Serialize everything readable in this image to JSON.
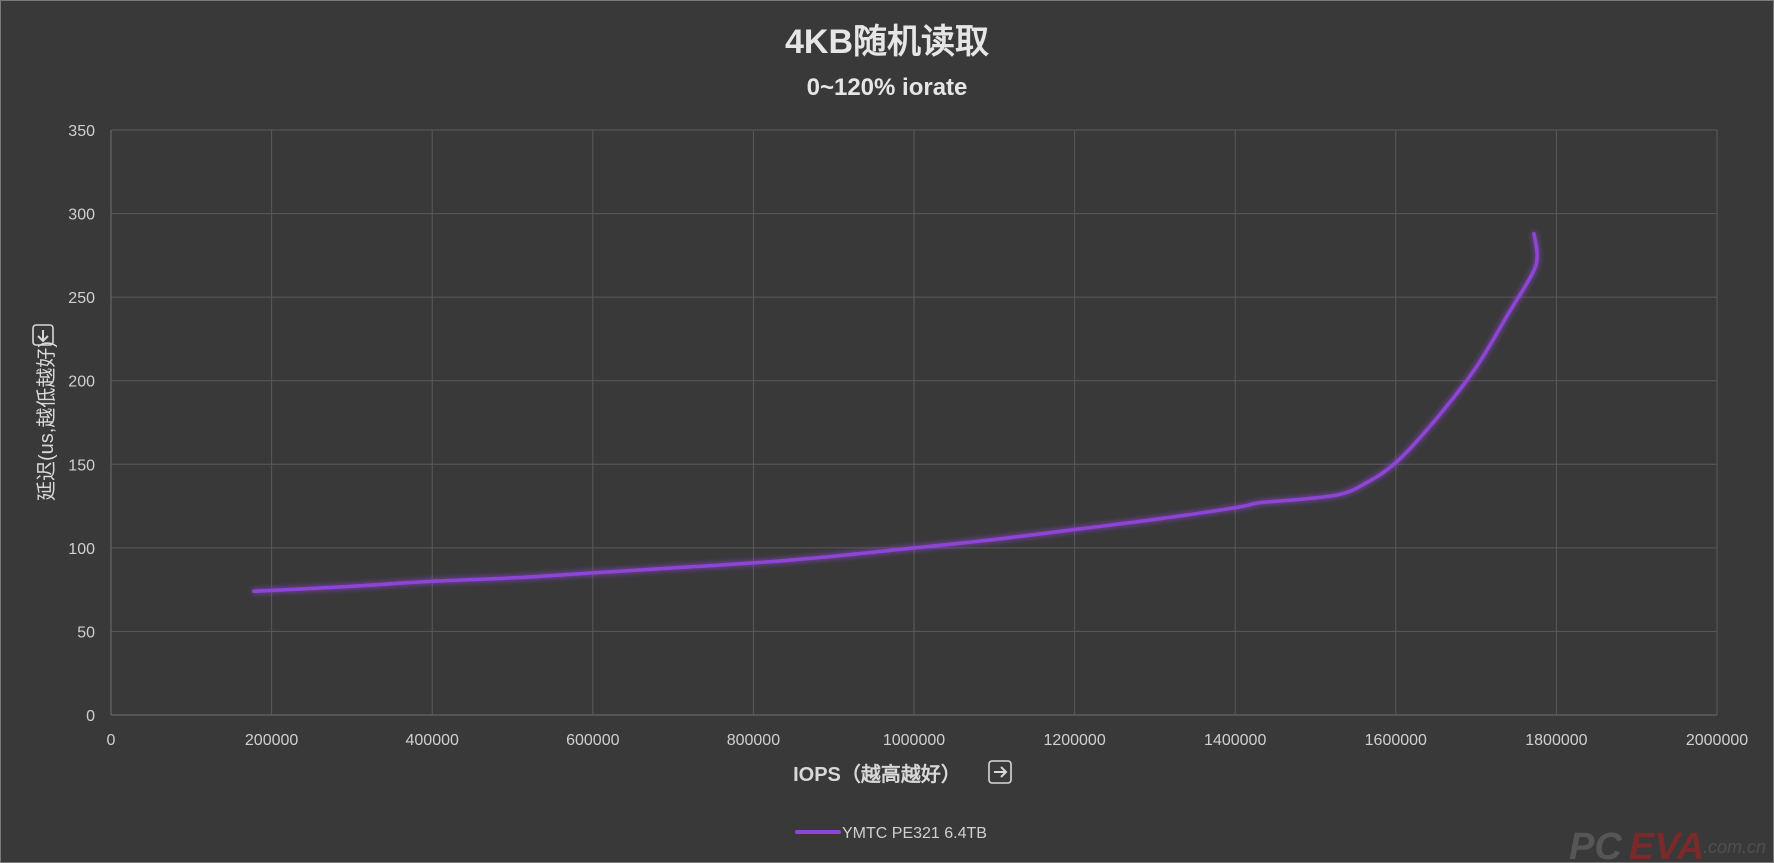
{
  "chart_data": {
    "type": "line",
    "title": "4KB随机读取",
    "subtitle": "0~120% iorate",
    "xlabel": "IOPS（越高越好）",
    "ylabel": "延迟(us,越低越好)",
    "xlim": [
      0,
      2000000
    ],
    "ylim": [
      0,
      350
    ],
    "xticks": [
      0,
      200000,
      400000,
      600000,
      800000,
      1000000,
      1200000,
      1400000,
      1600000,
      1800000,
      2000000
    ],
    "yticks": [
      0,
      50,
      100,
      150,
      200,
      250,
      300,
      350
    ],
    "grid": true,
    "legend_position": "bottom",
    "series": [
      {
        "name": "YMTC PE321 6.4TB",
        "color": "#8e44d6",
        "x": [
          178000,
          300000,
          400000,
          500000,
          600000,
          700000,
          800000,
          900000,
          1000000,
          1100000,
          1200000,
          1300000,
          1400000,
          1430000,
          1480000,
          1530000,
          1560000,
          1600000,
          1650000,
          1700000,
          1740000,
          1770000,
          1776000,
          1772000
        ],
        "y": [
          74,
          77,
          80,
          82,
          85,
          88,
          91,
          95,
          100,
          105,
          111,
          117,
          124,
          127,
          129,
          132,
          138,
          151,
          177,
          208,
          240,
          264,
          275,
          288
        ]
      }
    ]
  },
  "watermark": {
    "part1": "PC",
    "part2": "EVA",
    "part3": ".com.cn"
  }
}
